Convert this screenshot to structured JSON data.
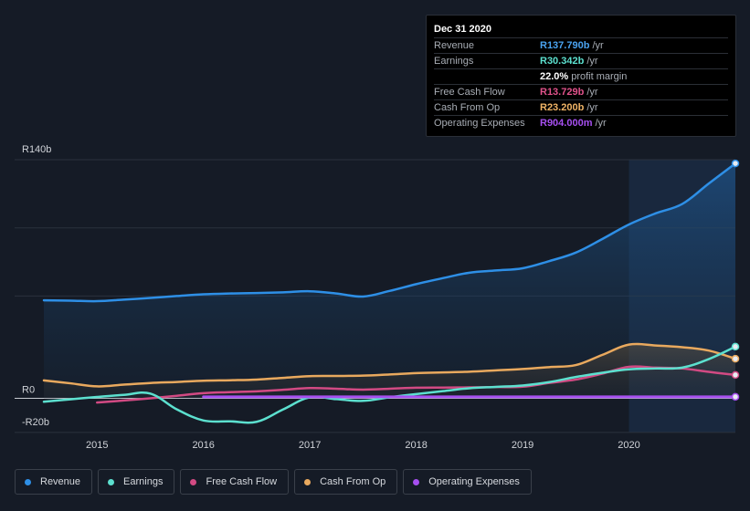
{
  "tooltip": {
    "date": "Dec 31 2020",
    "rows": [
      {
        "label": "Revenue",
        "value": "R137.790b",
        "unit": "/yr",
        "color": "#4aa3f0"
      },
      {
        "label": "Earnings",
        "value": "R30.342b",
        "unit": "/yr",
        "color": "#5ce0cf"
      },
      {
        "label": "",
        "value": "22.0%",
        "unit": "profit margin",
        "color": "#ffffff"
      },
      {
        "label": "Free Cash Flow",
        "value": "R13.729b",
        "unit": "/yr",
        "color": "#e0528b"
      },
      {
        "label": "Cash From Op",
        "value": "R23.200b",
        "unit": "/yr",
        "color": "#f0b466"
      },
      {
        "label": "Operating Expenses",
        "value": "R904.000m",
        "unit": "/yr",
        "color": "#a64ff0"
      }
    ]
  },
  "legend": [
    {
      "label": "Revenue",
      "color": "#2e8fe6"
    },
    {
      "label": "Earnings",
      "color": "#5ce0cf"
    },
    {
      "label": "Free Cash Flow",
      "color": "#d24a83"
    },
    {
      "label": "Cash From Op",
      "color": "#e9a95e"
    },
    {
      "label": "Operating Expenses",
      "color": "#a64ff0"
    }
  ],
  "chart_data": {
    "type": "area",
    "title": "",
    "xlabel": "",
    "ylabel": "",
    "y_tick_labels": [
      {
        "value": 140,
        "label": "R140b"
      },
      {
        "value": 0,
        "label": "R0"
      },
      {
        "value": -20,
        "label": "-R20b"
      }
    ],
    "ylim": [
      -20,
      140
    ],
    "xlim": [
      2014.5,
      2021.0
    ],
    "x_ticks": [
      2015,
      2016,
      2017,
      2018,
      2019,
      2020
    ],
    "x_tick_labels": [
      "2015",
      "2016",
      "2017",
      "2018",
      "2019",
      "2020"
    ],
    "highlight_from": 2020.0,
    "grid": "horizontal",
    "legend_position": "bottom",
    "series": [
      {
        "name": "Revenue",
        "color": "#2e8fe6",
        "fill": true,
        "points": [
          [
            2014.5,
            57.5
          ],
          [
            2014.75,
            57.3
          ],
          [
            2015.0,
            57.0
          ],
          [
            2015.25,
            57.9
          ],
          [
            2015.5,
            58.9
          ],
          [
            2015.75,
            60.0
          ],
          [
            2016.0,
            61.0
          ],
          [
            2016.25,
            61.5
          ],
          [
            2016.5,
            61.8
          ],
          [
            2016.75,
            62.2
          ],
          [
            2017.0,
            62.8
          ],
          [
            2017.25,
            61.5
          ],
          [
            2017.5,
            59.7
          ],
          [
            2017.75,
            63.0
          ],
          [
            2018.0,
            67.0
          ],
          [
            2018.25,
            70.5
          ],
          [
            2018.5,
            73.7
          ],
          [
            2018.75,
            75.0
          ],
          [
            2019.0,
            76.3
          ],
          [
            2019.25,
            80.5
          ],
          [
            2019.5,
            85.5
          ],
          [
            2019.75,
            93.5
          ],
          [
            2020.0,
            102.0
          ],
          [
            2020.25,
            108.5
          ],
          [
            2020.5,
            114.0
          ],
          [
            2020.75,
            126.0
          ],
          [
            2021.0,
            137.8
          ]
        ]
      },
      {
        "name": "Earnings",
        "color": "#5ce0cf",
        "fill": false,
        "points": [
          [
            2014.5,
            -2.0
          ],
          [
            2014.75,
            -0.6
          ],
          [
            2015.0,
            0.8
          ],
          [
            2015.25,
            2.0
          ],
          [
            2015.5,
            2.8
          ],
          [
            2015.75,
            -6.5
          ],
          [
            2016.0,
            -13.0
          ],
          [
            2016.25,
            -13.5
          ],
          [
            2016.5,
            -13.8
          ],
          [
            2016.75,
            -6.5
          ],
          [
            2017.0,
            0.6
          ],
          [
            2017.25,
            -0.5
          ],
          [
            2017.5,
            -1.5
          ],
          [
            2017.75,
            0.6
          ],
          [
            2018.0,
            2.5
          ],
          [
            2018.25,
            4.2
          ],
          [
            2018.5,
            5.9
          ],
          [
            2018.75,
            6.7
          ],
          [
            2019.0,
            7.5
          ],
          [
            2019.25,
            9.5
          ],
          [
            2019.5,
            12.5
          ],
          [
            2019.75,
            15.0
          ],
          [
            2020.0,
            17.0
          ],
          [
            2020.25,
            17.5
          ],
          [
            2020.5,
            18.0
          ],
          [
            2020.75,
            23.0
          ],
          [
            2021.0,
            30.3
          ]
        ]
      },
      {
        "name": "Free Cash Flow",
        "color": "#d24a83",
        "fill": false,
        "points": [
          [
            2015.0,
            -2.5
          ],
          [
            2015.25,
            -1.3
          ],
          [
            2015.5,
            0.0
          ],
          [
            2015.75,
            1.5
          ],
          [
            2016.0,
            3.0
          ],
          [
            2016.25,
            3.6
          ],
          [
            2016.5,
            4.1
          ],
          [
            2016.75,
            5.0
          ],
          [
            2017.0,
            6.0
          ],
          [
            2017.25,
            5.6
          ],
          [
            2017.5,
            5.1
          ],
          [
            2017.75,
            5.6
          ],
          [
            2018.0,
            6.2
          ],
          [
            2018.25,
            6.3
          ],
          [
            2018.5,
            6.4
          ],
          [
            2018.75,
            6.6
          ],
          [
            2019.0,
            6.8
          ],
          [
            2019.25,
            9.0
          ],
          [
            2019.5,
            11.0
          ],
          [
            2019.75,
            14.5
          ],
          [
            2020.0,
            18.5
          ],
          [
            2020.25,
            18.0
          ],
          [
            2020.5,
            17.5
          ],
          [
            2020.75,
            15.5
          ],
          [
            2021.0,
            13.7
          ]
        ]
      },
      {
        "name": "Cash From Op",
        "color": "#e9a95e",
        "fill": true,
        "points": [
          [
            2014.5,
            10.5
          ],
          [
            2014.75,
            8.8
          ],
          [
            2015.0,
            7.0
          ],
          [
            2015.25,
            8.0
          ],
          [
            2015.5,
            9.0
          ],
          [
            2015.75,
            9.6
          ],
          [
            2016.0,
            10.3
          ],
          [
            2016.25,
            10.6
          ],
          [
            2016.5,
            11.0
          ],
          [
            2016.75,
            12.0
          ],
          [
            2017.0,
            13.0
          ],
          [
            2017.25,
            13.1
          ],
          [
            2017.5,
            13.3
          ],
          [
            2017.75,
            14.0
          ],
          [
            2018.0,
            14.8
          ],
          [
            2018.25,
            15.2
          ],
          [
            2018.5,
            15.6
          ],
          [
            2018.75,
            16.4
          ],
          [
            2019.0,
            17.2
          ],
          [
            2019.25,
            18.3
          ],
          [
            2019.5,
            19.5
          ],
          [
            2019.75,
            25.5
          ],
          [
            2020.0,
            31.5
          ],
          [
            2020.25,
            31.0
          ],
          [
            2020.5,
            30.0
          ],
          [
            2020.75,
            28.0
          ],
          [
            2021.0,
            23.2
          ]
        ]
      },
      {
        "name": "Operating Expenses",
        "color": "#a64ff0",
        "fill": false,
        "points": [
          [
            2016.0,
            0.9
          ],
          [
            2016.5,
            0.9
          ],
          [
            2017.0,
            0.9
          ],
          [
            2017.5,
            0.9
          ],
          [
            2018.0,
            0.9
          ],
          [
            2018.5,
            0.9
          ],
          [
            2019.0,
            0.9
          ],
          [
            2019.5,
            0.9
          ],
          [
            2020.0,
            0.9
          ],
          [
            2020.5,
            0.9
          ],
          [
            2021.0,
            0.9
          ]
        ]
      }
    ]
  }
}
